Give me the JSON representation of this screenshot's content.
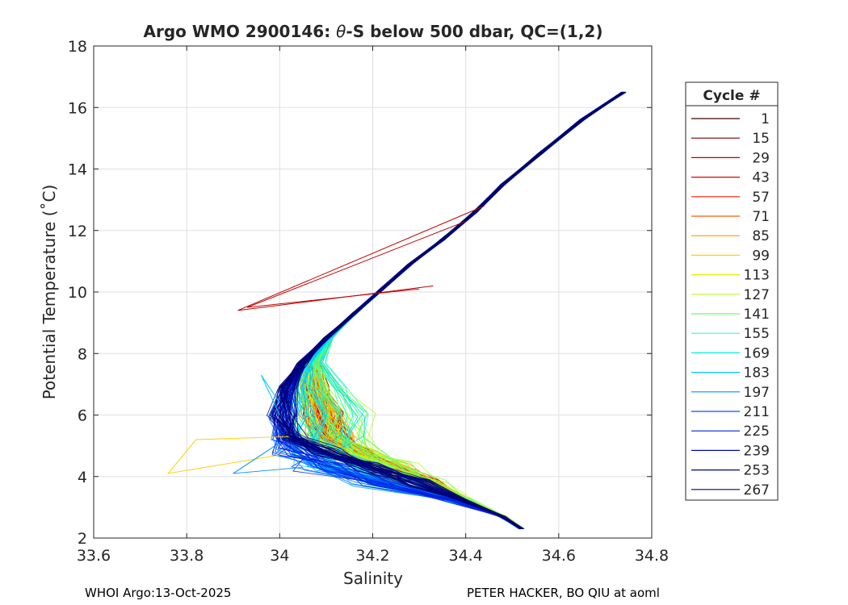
{
  "chart_data": {
    "type": "line",
    "title": "Argo WMO 2900146: θ-S below 500 dbar,  QC=(1,2)",
    "title_parts": {
      "prefix": "Argo WMO 2900146: ",
      "symbol": "θ",
      "suffix": "-S below 500 dbar,  QC=(1,2)"
    },
    "xlabel": "Salinity",
    "ylabel": "Potential Temperature (˚C)",
    "xlim": [
      33.6,
      34.8
    ],
    "ylim": [
      2,
      18
    ],
    "xticks": [
      "33.6",
      "33.8",
      "34",
      "34.2",
      "34.4",
      "34.6",
      "34.8"
    ],
    "yticks": [
      "2",
      "4",
      "6",
      "8",
      "10",
      "12",
      "14",
      "16",
      "18"
    ],
    "grid": true,
    "legend": {
      "title": "Cycle #",
      "placement": "outside-right",
      "entries": [
        "1",
        "15",
        "29",
        "43",
        "57",
        "71",
        "85",
        "99",
        "113",
        "127",
        "141",
        "155",
        "169",
        "183",
        "197",
        "211",
        "225",
        "239",
        "253",
        "267"
      ],
      "colors": [
        "#3a0000",
        "#7a0000",
        "#c00000",
        "#e00000",
        "#ff1a00",
        "#ff5a00",
        "#ff9a00",
        "#ffd000",
        "#e8f000",
        "#b0ff20",
        "#70ff60",
        "#30ffb0",
        "#00f0e0",
        "#00c8ff",
        "#0090ff",
        "#0050ff",
        "#0020e0",
        "#000ab0",
        "#00008a",
        "#000070"
      ]
    },
    "series_description": "One theta-S profile per cycle; lines share a common upper branch from about (34.74, 16.5) down to (34.0, 6.3) and turn to the deep limit near (34.52, 2.3).",
    "anchor_profile": {
      "salinity": [
        34.74,
        34.65,
        34.56,
        34.48,
        34.42,
        34.35,
        34.28,
        34.22,
        34.16,
        34.1,
        34.05,
        34.02,
        34.01,
        34.03,
        34.1,
        34.2,
        34.3,
        34.4,
        34.48,
        34.52
      ],
      "theta": [
        16.5,
        15.6,
        14.5,
        13.5,
        12.6,
        11.7,
        10.9,
        10.1,
        9.3,
        8.5,
        7.7,
        6.9,
        6.0,
        5.3,
        4.8,
        4.3,
        3.8,
        3.2,
        2.7,
        2.3
      ]
    }
  },
  "footer": {
    "left": "WHOI Argo:13-Oct-2025",
    "right": "PETER HACKER, BO QIU at aoml"
  }
}
